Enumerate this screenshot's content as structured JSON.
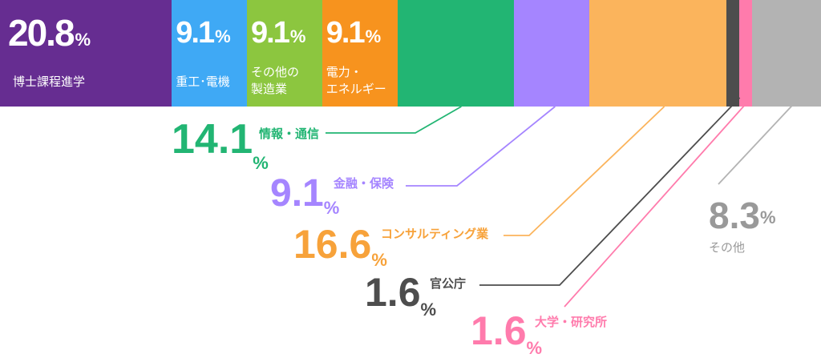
{
  "chart_data": {
    "type": "bar",
    "orientation": "horizontal-stacked-100",
    "unit": "%",
    "categories": [
      "博士課程進学",
      "重工･電機",
      "その他の\n製造業",
      "電力・\nエネルギー",
      "情報・通信",
      "金融・保険",
      "コンサルティング業",
      "官公庁",
      "大学・研究所",
      "その他"
    ],
    "values": [
      20.8,
      9.1,
      9.1,
      9.1,
      14.1,
      9.1,
      16.6,
      1.6,
      1.6,
      8.3
    ],
    "value_labels": [
      "20.8",
      "9.1",
      "9.1",
      "9.1",
      "14.1",
      "9.1",
      "16.6",
      "1.6",
      "1.6",
      "8.3"
    ],
    "colors": [
      "#662d91",
      "#3fa9f5",
      "#8cc63f",
      "#f7931e",
      "#22b573",
      "#a585ff",
      "#fbb45c",
      "#4d4d4d",
      "#ff7bac",
      "#b3b3b3"
    ],
    "callout_colors": [
      "#662d91",
      "#3fa9f5",
      "#8cc63f",
      "#f7931e",
      "#22b573",
      "#a585ff",
      "#f7a23a",
      "#4d4d4d",
      "#ff7bac",
      "#999999"
    ],
    "grid": false,
    "legend": "none"
  }
}
